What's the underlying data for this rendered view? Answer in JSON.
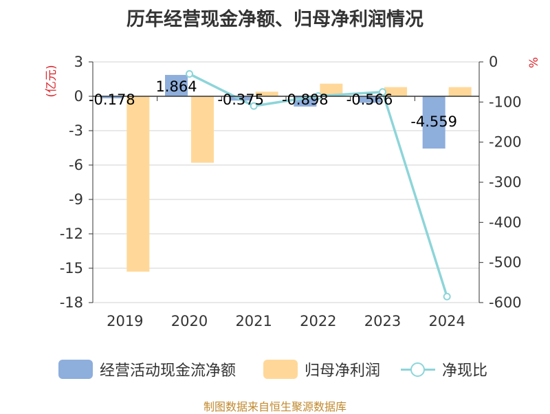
{
  "chart_data": {
    "type": "bar",
    "title": "历年经营现金净额、归母净利润情况",
    "categories": [
      "2019",
      "2020",
      "2021",
      "2022",
      "2023",
      "2024"
    ],
    "y_left": {
      "label": "(亿元)",
      "ylim": [
        -18,
        3
      ],
      "ticks": [
        "3",
        "0",
        "-3",
        "-6",
        "-9",
        "-12",
        "-15",
        "-18"
      ]
    },
    "y_right": {
      "label": "%",
      "ylim": [
        -600,
        0
      ],
      "ticks": [
        "0",
        "-100",
        "-200",
        "-300",
        "-400",
        "-500",
        "-600"
      ]
    },
    "series": [
      {
        "name": "经营活动现金流净额",
        "type": "bar",
        "axis": "left",
        "color": "#8eaedc",
        "values": [
          -0.178,
          1.864,
          -0.375,
          -0.898,
          -0.566,
          -4.559
        ],
        "labels": [
          "-0.178",
          "1.864",
          "-0.375",
          "-0.898",
          "-0.566",
          "-4.559"
        ]
      },
      {
        "name": "归母净利润",
        "type": "bar",
        "axis": "left",
        "color": "#ffd899",
        "values": [
          -15.3,
          -5.8,
          0.4,
          1.1,
          0.8,
          0.8
        ]
      },
      {
        "name": "净现比",
        "type": "line",
        "axis": "right",
        "color": "#8dd5d9",
        "values": [
          null,
          -30,
          -110,
          -85,
          -75,
          -585
        ]
      }
    ],
    "legend": "bottom"
  },
  "source": "制图数据来自恒生聚源数据库"
}
